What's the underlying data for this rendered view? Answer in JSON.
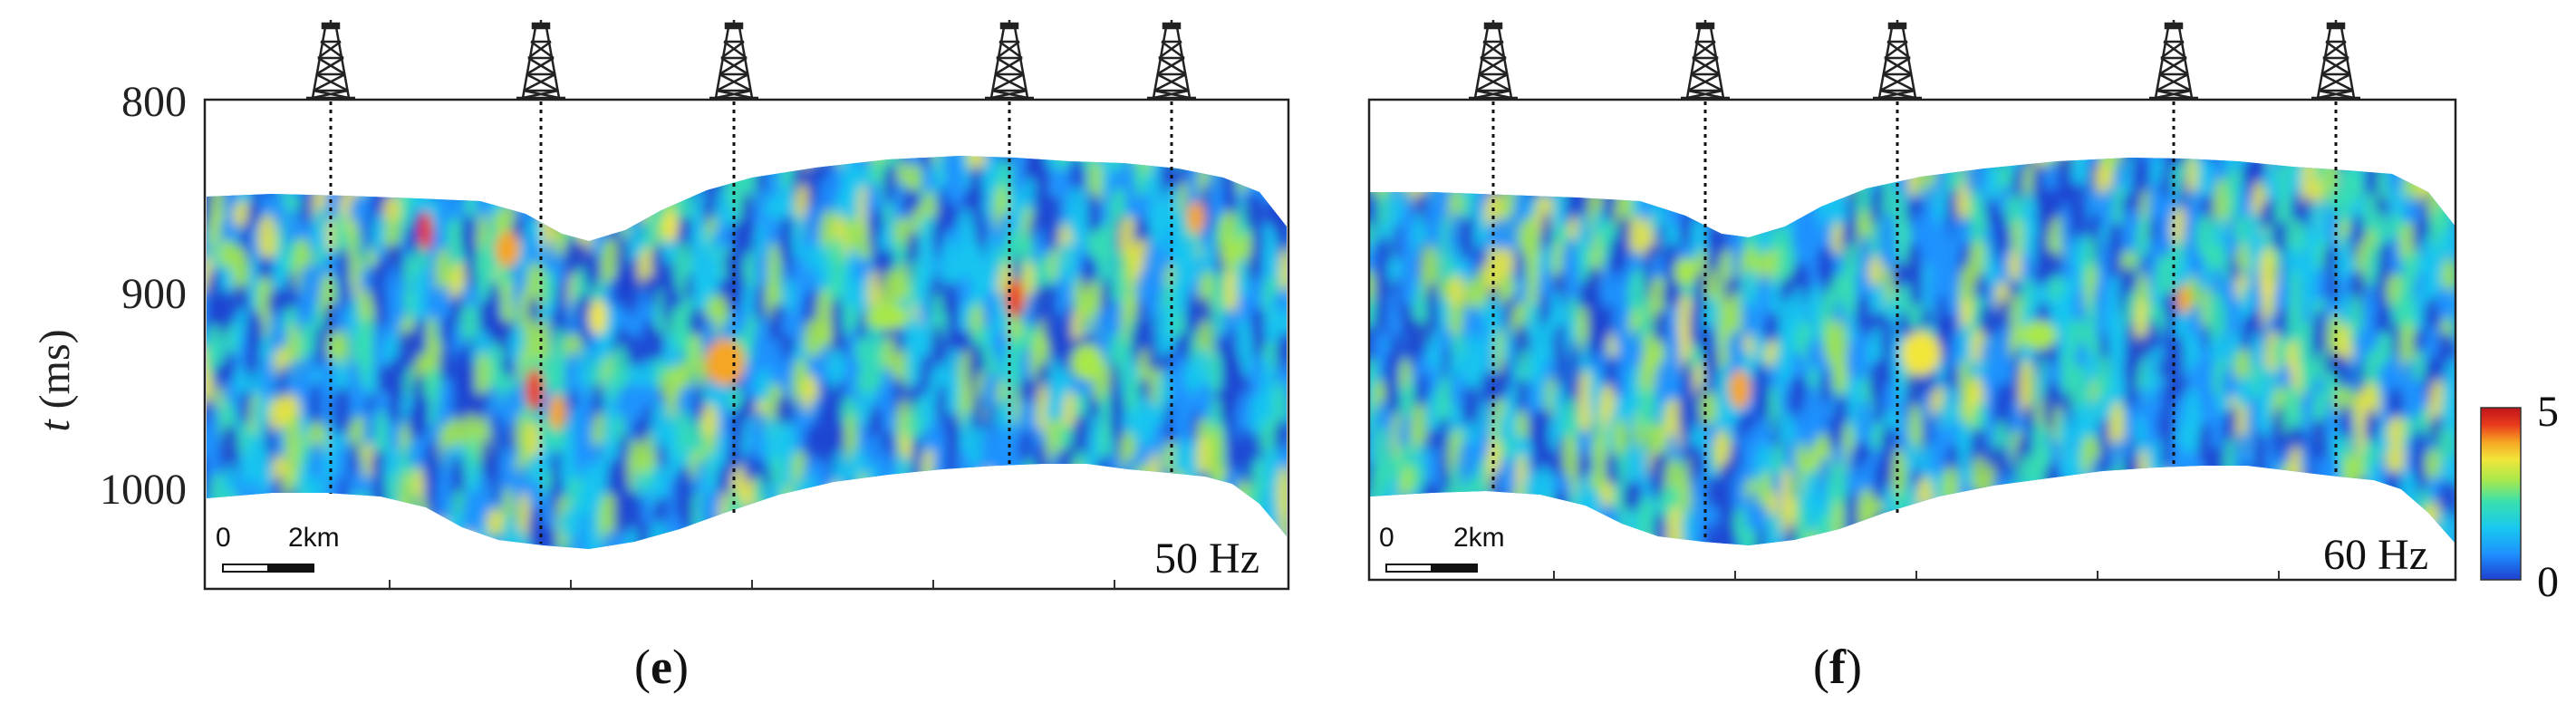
{
  "figure": {
    "y_axis": {
      "label_italic": "t",
      "label_unit": " (ms)",
      "ticks": [
        "800",
        "900",
        "1000"
      ]
    },
    "colorbar": {
      "min_label": "0",
      "max_label": "5",
      "colormap": [
        "#1f3fd0",
        "#1e90ff",
        "#19c8f0",
        "#37e0b0",
        "#a8e84a",
        "#f2e63a",
        "#f5a623",
        "#ea3a1c",
        "#c0131b"
      ]
    },
    "scale_bar": {
      "start_label": "0",
      "end_label": "2km"
    },
    "panels": [
      {
        "letter": "e",
        "frequency": "50 Hz",
        "well_icon": "oil-derrick-icon"
      },
      {
        "letter": "f",
        "frequency": "60 Hz",
        "well_icon": "oil-derrick-icon"
      }
    ]
  }
}
